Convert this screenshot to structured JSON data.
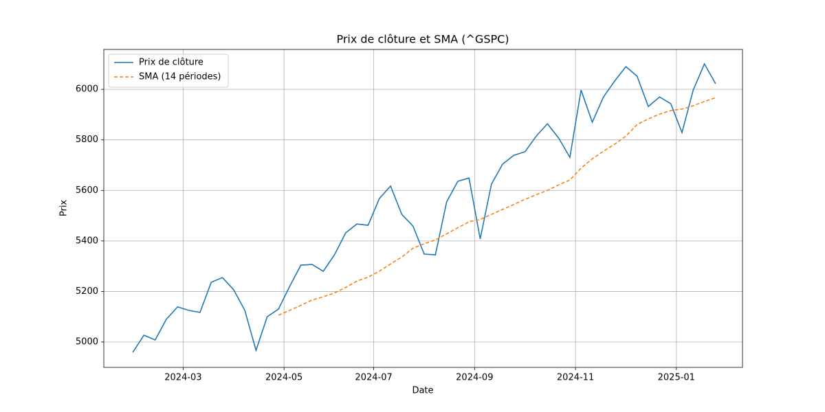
{
  "chart_data": {
    "type": "line",
    "title": "Prix de clôture et SMA (^GSPC)",
    "x_label": "Date",
    "y_label": "Prix",
    "x": [
      "2024-01",
      "2024-02",
      "2024-02",
      "2024-02",
      "2024-02",
      "2024-03",
      "2024-03",
      "2024-03",
      "2024-03",
      "2024-04",
      "2024-04",
      "2024-04",
      "2024-04",
      "2024-04",
      "2024-05",
      "2024-05",
      "2024-05",
      "2024-05",
      "2024-06",
      "2024-06",
      "2024-06",
      "2024-06",
      "2024-07",
      "2024-07",
      "2024-07",
      "2024-07",
      "2024-07",
      "2024-08",
      "2024-08",
      "2024-08",
      "2024-08",
      "2024-09",
      "2024-09",
      "2024-09",
      "2024-09",
      "2024-09",
      "2024-10",
      "2024-10",
      "2024-10",
      "2024-10",
      "2024-11",
      "2024-11",
      "2024-11",
      "2024-11",
      "2024-12",
      "2024-12",
      "2024-12",
      "2024-12",
      "2024-12",
      "2025-01",
      "2025-01",
      "2025-01",
      "2025-01"
    ],
    "xticks": [
      "2024-03",
      "2024-05",
      "2024-07",
      "2024-09",
      "2024-11",
      "2025-01"
    ],
    "series": [
      {
        "name": "Prix de clôture",
        "color": "#1f77b4",
        "linestyle": "solid",
        "values": [
          4959,
          5027,
          5008,
          5090,
          5139,
          5125,
          5117,
          5236,
          5255,
          5207,
          5125,
          4967,
          5100,
          5130,
          5220,
          5304,
          5307,
          5280,
          5345,
          5432,
          5467,
          5462,
          5568,
          5617,
          5505,
          5459,
          5348,
          5345,
          5554,
          5636,
          5649,
          5408,
          5625,
          5704,
          5739,
          5753,
          5815,
          5864,
          5807,
          5731,
          5997,
          5870,
          5970,
          6033,
          6090,
          6052,
          5932,
          5970,
          5943,
          5829,
          5997,
          6101,
          6022
        ]
      },
      {
        "name": "SMA (14 périodes)",
        "color": "#ff7f0e",
        "linestyle": "dashed",
        "values": [
          null,
          null,
          null,
          null,
          null,
          null,
          null,
          null,
          null,
          null,
          null,
          null,
          null,
          5106,
          5125,
          5145,
          5166,
          5179,
          5194,
          5216,
          5241,
          5257,
          5280,
          5309,
          5336,
          5371,
          5389,
          5404,
          5428,
          5452,
          5476,
          5485,
          5505,
          5525,
          5544,
          5565,
          5583,
          5600,
          5622,
          5641,
          5688,
          5725,
          5755,
          5783,
          5815,
          5861,
          5883,
          5902,
          5916,
          5922,
          5935,
          5952,
          5967
        ]
      }
    ],
    "ylim": [
      4899.5,
      6158
    ],
    "yticks": [
      5000,
      5200,
      5400,
      5600,
      5800,
      6000
    ],
    "grid": true,
    "legend": "upper left"
  }
}
